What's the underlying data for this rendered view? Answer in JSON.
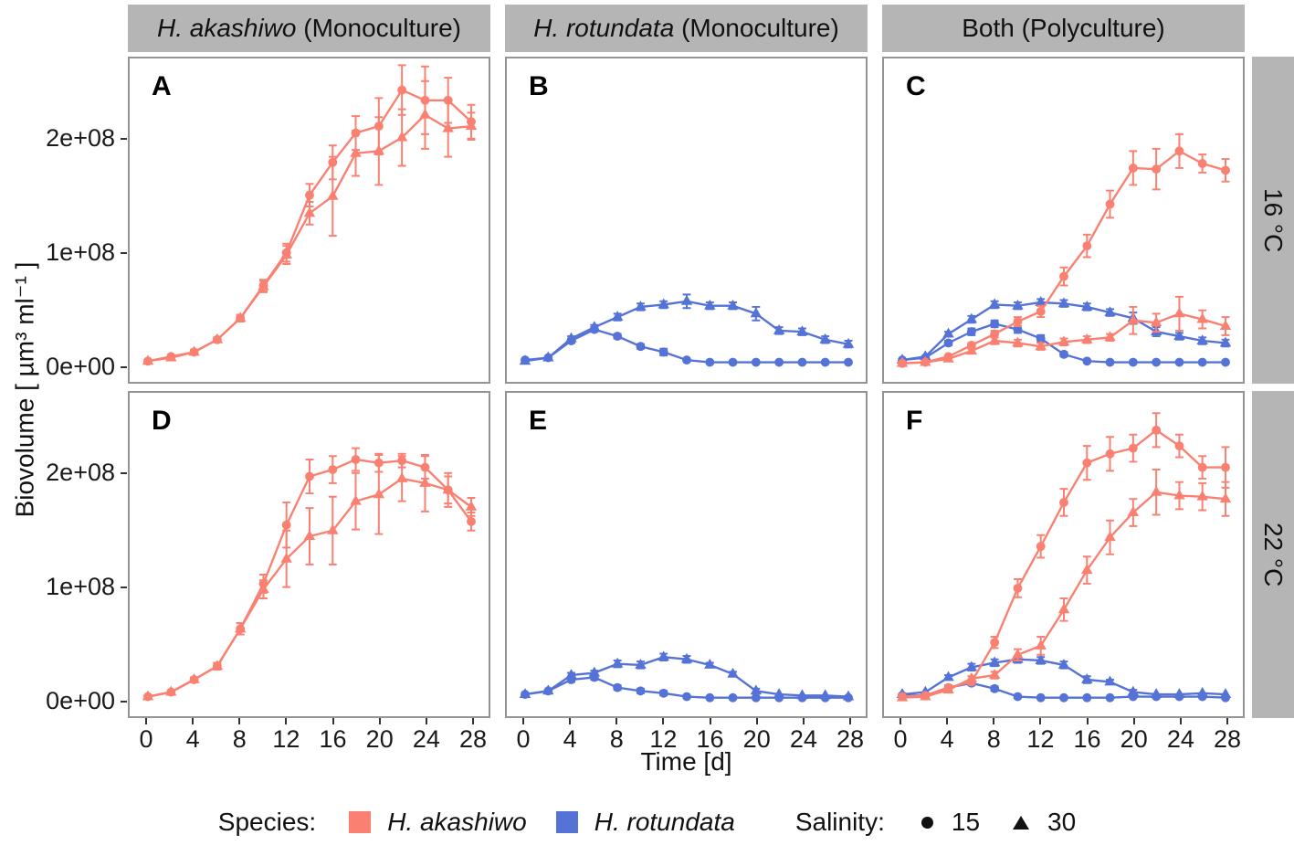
{
  "figure": {
    "y_axis_label": "Biovolume [ µm³ ml⁻¹ ]",
    "x_axis_label": "Time [d]",
    "col_headers": [
      {
        "italic": "H. akashiwo",
        "rest": " (Monoculture)"
      },
      {
        "italic": "H. rotundata",
        "rest": " (Monoculture)"
      },
      {
        "italic": "",
        "rest": "Both (Polyculture)"
      }
    ],
    "row_headers": [
      "16 °C",
      "22 °C"
    ],
    "legend": {
      "species_label": "Species:",
      "species": [
        {
          "name": "H. akashiwo",
          "color": "#FA8072"
        },
        {
          "name": "H. rotundata",
          "color": "#5573D7"
        }
      ],
      "salinity_label": "Salinity:",
      "salinities": [
        {
          "value": "15",
          "marker": "circle"
        },
        {
          "value": "30",
          "marker": "triangle"
        }
      ]
    }
  },
  "chart_data": {
    "type": "line",
    "x_unit": "days",
    "value_scale": 1000000,
    "value_unit": "µm³ ml⁻¹ (values stored in multiples of 1e6)",
    "x": [
      0,
      2,
      4,
      6,
      8,
      10,
      12,
      14,
      16,
      18,
      20,
      22,
      24,
      26,
      28
    ],
    "xticks": [
      0,
      4,
      8,
      12,
      16,
      20,
      24,
      28
    ],
    "yticks": [
      0,
      100,
      200
    ],
    "ytick_labels": [
      "0e+00",
      "1e+08",
      "2e+08"
    ],
    "ylim_e6": [
      0,
      272
    ],
    "grid": false,
    "legend_position": "bottom",
    "panels": [
      {
        "label": "A",
        "row": "16 °C",
        "col": "H. akashiwo (Monoculture)",
        "series": [
          {
            "species": "H. akashiwo",
            "salinity": 15,
            "marker": "circle",
            "color": "#FA8072",
            "values": [
              4,
              8,
              12,
              23,
              42,
              71,
              100,
              151,
              180,
              206,
              212,
              244,
              235,
              235,
              216
            ],
            "err": [
              1,
              1,
              2,
              2,
              3,
              5,
              8,
              10,
              15,
              15,
              25,
              22,
              30,
              20,
              15
            ]
          },
          {
            "species": "H. akashiwo",
            "salinity": 30,
            "marker": "triangle",
            "color": "#FA8072",
            "values": [
              4,
              7,
              12,
              23,
              42,
              70,
              98,
              135,
              150,
              188,
              190,
              202,
              222,
              210,
              212
            ],
            "err": [
              1,
              1,
              2,
              2,
              3,
              5,
              8,
              10,
              35,
              20,
              30,
              25,
              30,
              25,
              12
            ]
          }
        ]
      },
      {
        "label": "B",
        "row": "16 °C",
        "col": "H. rotundata (Monoculture)",
        "series": [
          {
            "species": "H. rotundata",
            "salinity": 15,
            "marker": "circle",
            "color": "#5573D7",
            "values": [
              5,
              7,
              22,
              32,
              26,
              17,
              12,
              5,
              3,
              3,
              3,
              3,
              3,
              3,
              3
            ],
            "err": [
              1,
              1,
              2,
              2,
              2,
              2,
              3,
              1,
              1,
              1,
              1,
              1,
              1,
              1,
              1
            ]
          },
          {
            "species": "H. rotundata",
            "salinity": 30,
            "marker": "triangle",
            "color": "#5573D7",
            "values": [
              4,
              7,
              24,
              34,
              43,
              52,
              54,
              57,
              53,
              53,
              46,
              31,
              30,
              23,
              19
            ],
            "err": [
              1,
              1,
              2,
              2,
              3,
              3,
              3,
              6,
              3,
              3,
              6,
              3,
              3,
              3,
              3
            ]
          }
        ]
      },
      {
        "label": "C",
        "row": "16 °C",
        "col": "Both (Polyculture)",
        "series": [
          {
            "species": "H. rotundata",
            "salinity": 15,
            "marker": "circle",
            "color": "#5573D7",
            "values": [
              5,
              7,
              20,
              30,
              37,
              32,
              24,
              10,
              4,
              3,
              3,
              3,
              3,
              3,
              3
            ],
            "err": [
              1,
              1,
              2,
              3,
              3,
              3,
              3,
              2,
              1,
              1,
              1,
              1,
              1,
              1,
              1
            ]
          },
          {
            "species": "H. rotundata",
            "salinity": 30,
            "marker": "triangle",
            "color": "#5573D7",
            "values": [
              5,
              8,
              28,
              41,
              54,
              53,
              56,
              55,
              52,
              47,
              42,
              30,
              26,
              22,
              20
            ],
            "err": [
              1,
              1,
              2,
              3,
              3,
              3,
              3,
              3,
              3,
              3,
              5,
              4,
              3,
              3,
              3
            ]
          },
          {
            "species": "H. akashiwo",
            "salinity": 15,
            "marker": "circle",
            "color": "#FA8072",
            "values": [
              2,
              3,
              8,
              18,
              28,
              39,
              48,
              79,
              106,
              143,
              175,
              174,
              190,
              179,
              173
            ],
            "err": [
              1,
              1,
              1,
              2,
              3,
              4,
              5,
              8,
              10,
              12,
              15,
              18,
              15,
              8,
              10
            ]
          },
          {
            "species": "H. akashiwo",
            "salinity": 30,
            "marker": "triangle",
            "color": "#FA8072",
            "values": [
              2,
              3,
              6,
              13,
              22,
              20,
              17,
              21,
              23,
              25,
              40,
              38,
              46,
              41,
              35
            ],
            "err": [
              1,
              1,
              1,
              2,
              3,
              3,
              3,
              3,
              3,
              3,
              12,
              8,
              15,
              8,
              8
            ]
          }
        ]
      },
      {
        "label": "D",
        "row": "22 °C",
        "col": "H. akashiwo (Monoculture)",
        "series": [
          {
            "species": "H. akashiwo",
            "salinity": 15,
            "marker": "circle",
            "color": "#FA8072",
            "values": [
              3,
              7,
              18,
              30,
              63,
              103,
              155,
              198,
              204,
              213,
              210,
              212,
              206,
              186,
              158
            ],
            "err": [
              1,
              1,
              2,
              3,
              5,
              8,
              20,
              15,
              12,
              10,
              8,
              6,
              10,
              12,
              8
            ]
          },
          {
            "species": "H. akashiwo",
            "salinity": 30,
            "marker": "triangle",
            "color": "#FA8072",
            "values": [
              3,
              7,
              18,
              30,
              63,
              98,
              125,
              145,
              150,
              176,
              182,
              196,
              192,
              186,
              171
            ],
            "err": [
              1,
              1,
              2,
              3,
              5,
              8,
              25,
              25,
              30,
              25,
              35,
              20,
              25,
              15,
              8
            ]
          }
        ]
      },
      {
        "label": "E",
        "row": "22 °C",
        "col": "H. rotundata (Monoculture)",
        "series": [
          {
            "species": "H. rotundata",
            "salinity": 15,
            "marker": "circle",
            "color": "#5573D7",
            "values": [
              5,
              8,
              18,
              20,
              11,
              8,
              6,
              3,
              2,
              2,
              2,
              2,
              2,
              2,
              2
            ],
            "err": [
              1,
              1,
              2,
              2,
              2,
              2,
              2,
              1,
              1,
              1,
              1,
              1,
              1,
              1,
              1
            ]
          },
          {
            "species": "H. rotundata",
            "salinity": 30,
            "marker": "triangle",
            "color": "#5573D7",
            "values": [
              5,
              8,
              22,
              24,
              32,
              31,
              38,
              36,
              31,
              23,
              8,
              5,
              4,
              4,
              3
            ],
            "err": [
              1,
              1,
              2,
              2,
              3,
              3,
              3,
              3,
              2,
              2,
              2,
              1,
              1,
              1,
              1
            ]
          }
        ]
      },
      {
        "label": "F",
        "row": "22 °C",
        "col": "Both (Polyculture)",
        "series": [
          {
            "species": "H. rotundata",
            "salinity": 15,
            "marker": "circle",
            "color": "#5573D7",
            "values": [
              4,
              4,
              11,
              15,
              10,
              3,
              2,
              2,
              2,
              2,
              3,
              3,
              3,
              3,
              2
            ],
            "err": [
              1,
              1,
              2,
              2,
              2,
              1,
              1,
              1,
              1,
              1,
              1,
              1,
              1,
              1,
              1
            ]
          },
          {
            "species": "H. rotundata",
            "salinity": 30,
            "marker": "triangle",
            "color": "#5573D7",
            "values": [
              5,
              7,
              20,
              29,
              33,
              36,
              35,
              31,
              18,
              16,
              7,
              5,
              5,
              6,
              5
            ],
            "err": [
              1,
              1,
              2,
              3,
              3,
              3,
              3,
              3,
              3,
              2,
              2,
              1,
              1,
              1,
              1
            ]
          },
          {
            "species": "H. akashiwo",
            "salinity": 15,
            "marker": "circle",
            "color": "#FA8072",
            "values": [
              3,
              4,
              11,
              16,
              51,
              99,
              136,
              175,
              210,
              218,
              223,
              239,
              225,
              206,
              206
            ],
            "err": [
              1,
              1,
              1,
              2,
              5,
              8,
              10,
              12,
              15,
              15,
              12,
              15,
              10,
              10,
              18
            ]
          },
          {
            "species": "H. akashiwo",
            "salinity": 30,
            "marker": "triangle",
            "color": "#FA8072",
            "values": [
              2,
              3,
              9,
              19,
              22,
              40,
              48,
              80,
              115,
              144,
              166,
              184,
              181,
              180,
              178
            ],
            "err": [
              1,
              1,
              1,
              2,
              3,
              5,
              8,
              10,
              12,
              15,
              12,
              20,
              12,
              12,
              15
            ]
          }
        ]
      }
    ]
  }
}
